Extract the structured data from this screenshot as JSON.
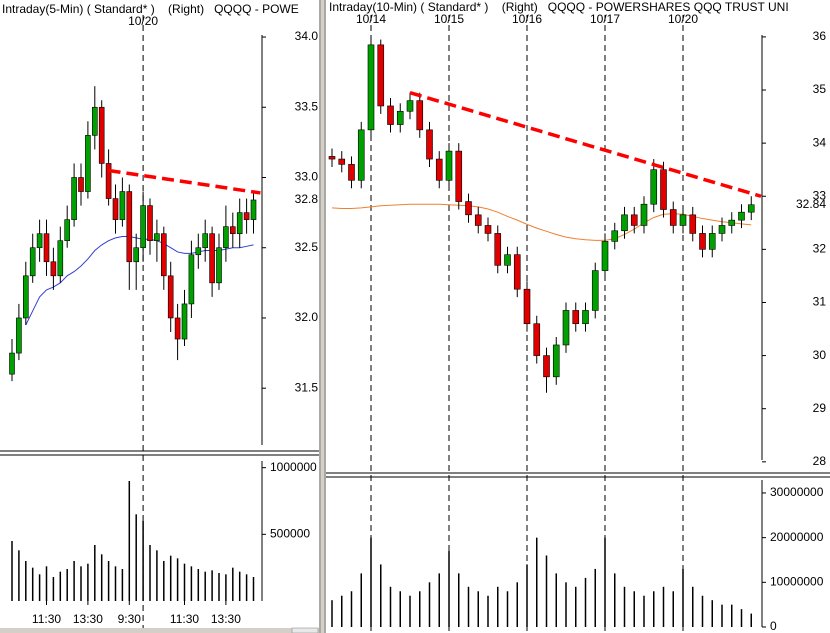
{
  "chart_data": [
    {
      "type": "candlestick",
      "title": "Intraday(5-Min) ( Standard* )    (Right)   QQQQ - POWE",
      "categories": [
        null,
        null,
        null,
        null,
        null,
        "11:30",
        null,
        null,
        null,
        null,
        null,
        "13:30",
        null,
        null,
        null,
        null,
        null,
        "9:30",
        null,
        null,
        null,
        null,
        null,
        null,
        null,
        "11:30",
        null,
        null,
        null,
        null,
        null,
        "13:30",
        null,
        null,
        null,
        null
      ],
      "date_markers": [
        null,
        null,
        null,
        null,
        null,
        null,
        null,
        null,
        null,
        null,
        null,
        null,
        null,
        null,
        null,
        null,
        null,
        null,
        null,
        "10/20",
        null,
        null,
        null,
        null,
        null,
        null,
        null,
        null,
        null,
        null,
        null,
        null,
        null,
        null,
        null,
        null
      ],
      "up_color": "#00a000",
      "down_color": "#e00000",
      "open": [
        31.6,
        31.75,
        32.0,
        32.3,
        32.5,
        32.6,
        32.4,
        32.3,
        32.55,
        32.7,
        33.0,
        32.9,
        33.3,
        33.5,
        33.1,
        32.85,
        32.7,
        32.9,
        32.4,
        32.5,
        32.8,
        32.55,
        32.6,
        32.3,
        32.0,
        31.85,
        32.1,
        32.45,
        32.5,
        32.6,
        32.25,
        32.5,
        32.65,
        32.6,
        32.75,
        32.7
      ],
      "high": [
        31.85,
        32.1,
        32.4,
        32.6,
        32.7,
        32.7,
        32.5,
        32.65,
        32.8,
        33.1,
        33.1,
        33.4,
        33.65,
        33.55,
        33.2,
        32.95,
        33.0,
        32.95,
        32.6,
        32.9,
        32.85,
        32.7,
        32.65,
        32.4,
        32.1,
        32.2,
        32.55,
        32.6,
        32.7,
        32.65,
        32.6,
        32.8,
        32.75,
        32.85,
        32.85,
        32.9
      ],
      "low": [
        31.55,
        31.7,
        31.95,
        32.25,
        32.4,
        32.3,
        32.2,
        32.25,
        32.5,
        32.65,
        32.8,
        32.85,
        33.2,
        33.0,
        32.8,
        32.6,
        32.65,
        32.2,
        32.2,
        32.4,
        32.45,
        32.4,
        32.2,
        31.9,
        31.7,
        31.8,
        32.0,
        32.35,
        32.4,
        32.15,
        32.2,
        32.4,
        32.5,
        32.5,
        32.6,
        32.6
      ],
      "close": [
        31.75,
        32.0,
        32.3,
        32.5,
        32.6,
        32.4,
        32.3,
        32.55,
        32.7,
        33.0,
        32.9,
        33.3,
        33.5,
        33.1,
        32.85,
        32.7,
        32.9,
        32.4,
        32.5,
        32.8,
        32.55,
        32.6,
        32.3,
        32.0,
        31.85,
        32.1,
        32.45,
        32.5,
        32.6,
        32.25,
        32.5,
        32.65,
        32.6,
        32.75,
        32.7,
        32.84
      ],
      "last_label": "32.8",
      "ma": {
        "color": "#3040d0",
        "values": [
          null,
          null,
          31.95,
          32.05,
          32.15,
          32.2,
          32.22,
          32.25,
          32.3,
          32.33,
          32.37,
          32.42,
          32.48,
          32.52,
          32.55,
          32.57,
          32.58,
          32.58,
          32.57,
          32.56,
          32.56,
          32.55,
          32.53,
          32.5,
          32.47,
          32.46,
          32.46,
          32.47,
          32.48,
          32.48,
          32.48,
          32.49,
          32.5,
          32.5,
          32.51,
          32.52
        ]
      },
      "trendline": {
        "color": "#ff0000",
        "start_index": 14,
        "start": 33.05,
        "end_index": 36,
        "end": 32.89
      },
      "ylim": [
        31.06,
        34.05
      ],
      "yticks": [
        {
          "value": 34,
          "label": "34.0"
        },
        33.5,
        {
          "value": 33,
          "label": "33.0"
        },
        32.5,
        {
          "value": 32,
          "label": "32.0"
        },
        31.5
      ],
      "volume": {
        "color": "#000000",
        "values": [
          450000,
          380000,
          300000,
          250000,
          200000,
          260000,
          180000,
          220000,
          240000,
          300000,
          260000,
          280000,
          420000,
          350000,
          300000,
          260000,
          240000,
          900000,
          650000,
          600000,
          420000,
          380000,
          300000,
          340000,
          320000,
          280000,
          260000,
          240000,
          220000,
          230000,
          210000,
          200000,
          250000,
          220000,
          200000,
          180000
        ],
        "ylim": [
          0,
          1050000
        ],
        "yticks": [
          1000000,
          500000
        ]
      }
    },
    {
      "type": "candlestick",
      "title": "Intraday(10-Min) ( Standard* )    (Right)   QQQQ - POWERSHARES QQQ TRUST UNI",
      "date_markers": [
        null,
        null,
        null,
        null,
        "10/14",
        null,
        null,
        null,
        null,
        null,
        null,
        null,
        "10/15",
        null,
        null,
        null,
        null,
        null,
        null,
        null,
        "10/16",
        null,
        null,
        null,
        null,
        null,
        null,
        null,
        "10/17",
        null,
        null,
        null,
        null,
        null,
        null,
        null,
        "10/20",
        null,
        null,
        null,
        null,
        null,
        null,
        null
      ],
      "up_color": "#00a000",
      "down_color": "#e00000",
      "open": [
        33.75,
        33.7,
        33.6,
        33.3,
        34.25,
        35.85,
        34.7,
        34.35,
        34.6,
        34.8,
        34.25,
        33.7,
        33.3,
        33.85,
        32.9,
        32.65,
        32.45,
        32.3,
        31.7,
        31.9,
        31.25,
        30.6,
        30.0,
        29.6,
        30.2,
        30.85,
        30.6,
        30.85,
        31.6,
        32.15,
        32.35,
        32.65,
        32.45,
        32.85,
        33.5,
        32.75,
        32.45,
        32.65,
        32.3,
        32.0,
        32.3,
        32.45,
        32.55,
        32.7
      ],
      "high": [
        33.9,
        33.85,
        33.75,
        34.4,
        36.0,
        35.95,
        34.85,
        34.75,
        34.95,
        34.95,
        34.4,
        33.85,
        34.0,
        34.0,
        33.05,
        32.8,
        32.6,
        32.45,
        32.05,
        32.05,
        31.4,
        30.75,
        30.15,
        30.35,
        31.0,
        31.0,
        31.0,
        31.75,
        32.3,
        32.5,
        32.8,
        32.8,
        33.0,
        33.7,
        33.65,
        32.9,
        32.8,
        32.8,
        32.45,
        32.45,
        32.6,
        32.7,
        32.85,
        33.0
      ],
      "low": [
        33.55,
        33.45,
        33.15,
        33.15,
        34.1,
        34.55,
        34.2,
        34.2,
        34.45,
        34.1,
        33.55,
        33.15,
        33.15,
        32.75,
        32.5,
        32.3,
        32.15,
        31.55,
        31.55,
        31.1,
        30.45,
        29.85,
        29.3,
        29.45,
        30.05,
        30.45,
        30.45,
        30.7,
        31.45,
        32.0,
        32.2,
        32.3,
        32.3,
        32.7,
        32.6,
        32.3,
        32.3,
        32.15,
        31.85,
        31.85,
        32.15,
        32.3,
        32.4,
        32.55
      ],
      "close": [
        33.7,
        33.6,
        33.3,
        34.25,
        35.85,
        34.7,
        34.35,
        34.6,
        34.8,
        34.25,
        33.7,
        33.3,
        33.85,
        32.9,
        32.65,
        32.45,
        32.3,
        31.7,
        31.9,
        31.25,
        30.6,
        30.0,
        29.6,
        30.2,
        30.85,
        30.6,
        30.85,
        31.6,
        32.15,
        32.35,
        32.65,
        32.45,
        32.85,
        33.5,
        32.75,
        32.45,
        32.65,
        32.3,
        32.0,
        32.3,
        32.45,
        32.55,
        32.7,
        32.84
      ],
      "ma": {
        "color": "#f08030",
        "values": [
          32.78,
          32.77,
          32.77,
          32.78,
          32.8,
          32.82,
          32.83,
          32.84,
          32.85,
          32.85,
          32.85,
          32.85,
          32.84,
          32.83,
          32.82,
          32.8,
          32.76,
          32.7,
          32.62,
          32.55,
          32.47,
          32.4,
          32.34,
          32.28,
          32.23,
          32.2,
          32.18,
          32.17,
          32.17,
          32.2,
          32.28,
          32.38,
          32.5,
          32.6,
          32.66,
          32.67,
          32.66,
          32.62,
          32.58,
          32.55,
          32.52,
          32.5,
          32.48,
          32.46
        ]
      },
      "trendline": {
        "color": "#ff0000",
        "start_index": 8,
        "start": 34.95,
        "end_index": 44,
        "end": 33.0
      },
      "ylim": [
        27.94,
        36.13
      ],
      "yticks": [
        36,
        35,
        34,
        33,
        32,
        31,
        30,
        29,
        28
      ],
      "volume": {
        "color": "#000000",
        "values": [
          6000000,
          7000000,
          8000000,
          12000000,
          20000000,
          14000000,
          9000000,
          8000000,
          7000000,
          8000000,
          10000000,
          12000000,
          17000000,
          12000000,
          9000000,
          8000000,
          7000000,
          9000000,
          8000000,
          10000000,
          14000000,
          20000000,
          16000000,
          12000000,
          10000000,
          9000000,
          11000000,
          13000000,
          20000000,
          12000000,
          9000000,
          8000000,
          7000000,
          8000000,
          9000000,
          8000000,
          13000000,
          9000000,
          7000000,
          6000000,
          5000000,
          5000000,
          4000000,
          3000000
        ],
        "ylim": [
          0,
          32900000
        ],
        "yticks": [
          30000000,
          20000000,
          10000000,
          0
        ]
      }
    }
  ]
}
